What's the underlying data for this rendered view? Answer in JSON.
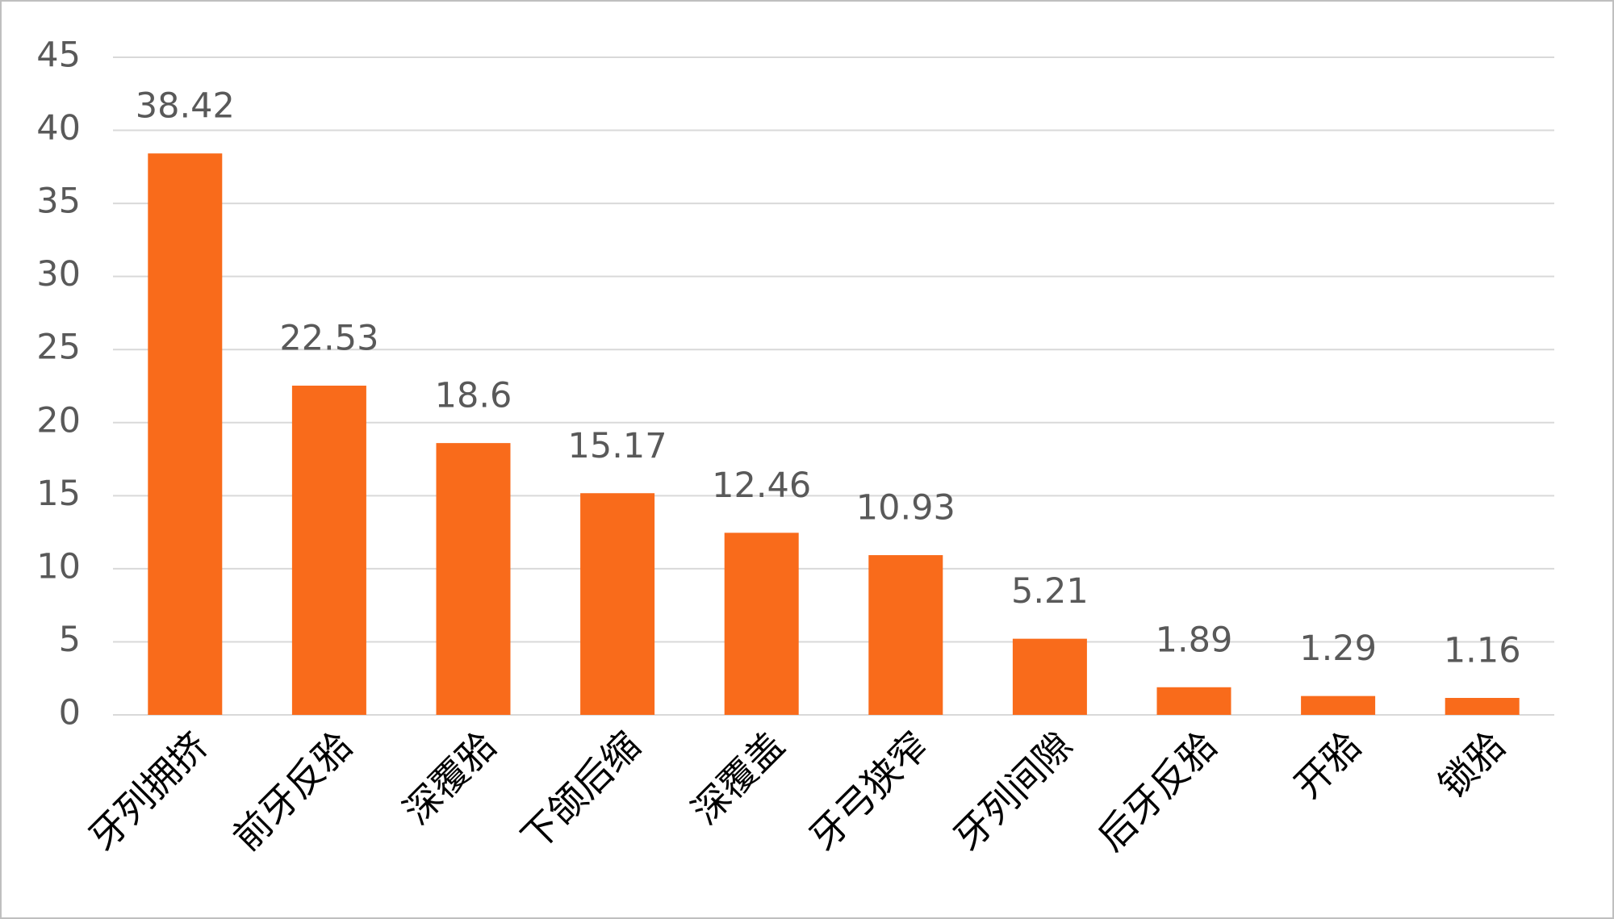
{
  "chart_data": {
    "type": "bar",
    "categories": [
      "牙列拥挤",
      "前牙反𬌗",
      "深覆𬌗",
      "下颌后缩",
      "深覆盖",
      "牙弓狭窄",
      "牙列间隙",
      "后牙反𬌗",
      "开𬌗",
      "锁𬌗"
    ],
    "values": [
      38.42,
      22.53,
      18.6,
      15.17,
      12.46,
      10.93,
      5.21,
      1.89,
      1.29,
      1.16
    ],
    "color": "#f96b1b",
    "ylim": [
      0,
      45
    ],
    "yticks": [
      0,
      5,
      10,
      15,
      20,
      25,
      30,
      35,
      40,
      45
    ],
    "grid": true
  }
}
